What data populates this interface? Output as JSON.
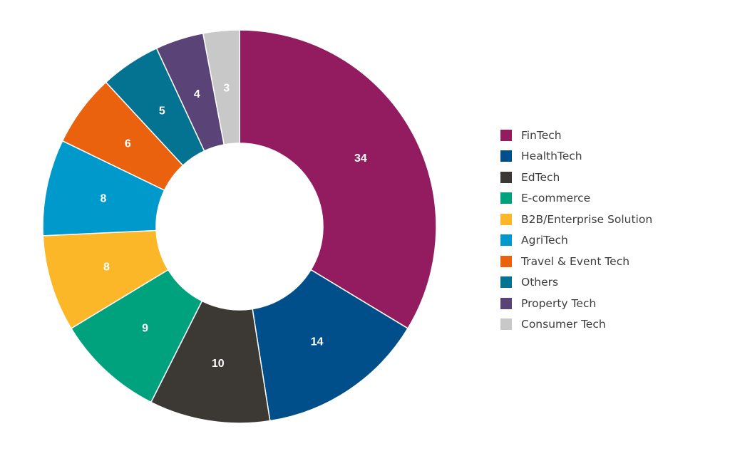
{
  "chart_data": {
    "type": "pie",
    "subtype": "donut",
    "categories": [
      "FinTech",
      "HealthTech",
      "EdTech",
      "E-commerce",
      "B2B/Enterprise Solution",
      "AgriTech",
      "Travel & Event Tech",
      "Others",
      "Property Tech",
      "Consumer Tech"
    ],
    "values": [
      34,
      14,
      10,
      9,
      8,
      8,
      6,
      5,
      4,
      3
    ],
    "colors": [
      "#931b5f",
      "#004f8a",
      "#3c3834",
      "#00a17d",
      "#fbb727",
      "#0099cc",
      "#ea620e",
      "#047291",
      "#5a4477",
      "#c8c8c8"
    ],
    "data_labels": [
      "34",
      "14",
      "10",
      "9",
      "8",
      "8",
      "6",
      "5",
      "4",
      "3"
    ],
    "title": "",
    "legend": {
      "position": "right",
      "entries": [
        "FinTech",
        "HealthTech",
        "EdTech",
        "E-commerce",
        "B2B/Enterprise Solution",
        "AgriTech",
        "Travel & Event Tech",
        "Others",
        "Property Tech",
        "Consumer Tech"
      ]
    }
  }
}
